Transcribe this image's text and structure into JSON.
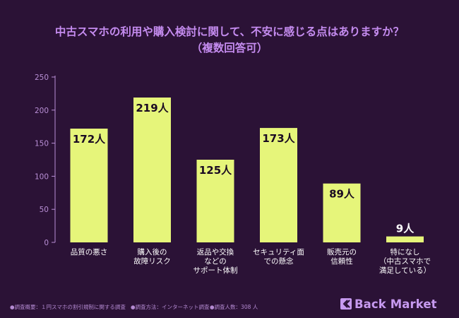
{
  "title_line1": "中古スマホの利用や購入検討に関して、不安に感じる点はありますか？",
  "title_line2": "（複数回答可）",
  "chart_data": {
    "type": "bar",
    "categories": [
      [
        "品質の悪さ"
      ],
      [
        "購入後の",
        "故障リスク"
      ],
      [
        "返品や交換",
        "などの",
        "サポート体制"
      ],
      [
        "セキュリティ面",
        "での懸念"
      ],
      [
        "販売元の",
        "信頼性"
      ],
      [
        "特になし",
        "（中古スマホで",
        "満足している）"
      ]
    ],
    "values": [
      172,
      219,
      125,
      173,
      89,
      9
    ],
    "value_labels": [
      "172人",
      "219人",
      "125人",
      "173人",
      "89人",
      "9人"
    ],
    "ylim": [
      0,
      250
    ],
    "yticks": [
      0,
      50,
      100,
      150,
      200,
      250
    ],
    "grid": false,
    "bar_color": "#e6f57a",
    "text_color": "#ffffff",
    "axis_color": "#b98fd6"
  },
  "footer": {
    "overview": "●調査概要：１円スマホの割引規制に関する調査",
    "method": "●調査方法：インターネット調査",
    "respondents": "●調査人数：308 人"
  },
  "brand": {
    "name": "Back Market",
    "color": "#c79af0"
  }
}
